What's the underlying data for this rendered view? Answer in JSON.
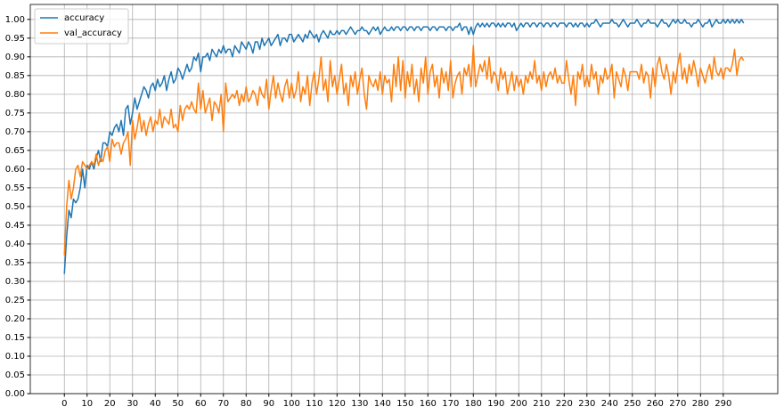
{
  "chart_data": {
    "type": "line",
    "x": [
      0,
      1,
      2,
      3,
      4,
      5,
      6,
      7,
      8,
      9,
      10,
      11,
      12,
      13,
      14,
      15,
      16,
      17,
      18,
      19,
      20,
      21,
      22,
      23,
      24,
      25,
      26,
      27,
      28,
      29,
      30,
      31,
      32,
      33,
      34,
      35,
      36,
      37,
      38,
      39,
      40,
      41,
      42,
      43,
      44,
      45,
      46,
      47,
      48,
      49,
      50,
      51,
      52,
      53,
      54,
      55,
      56,
      57,
      58,
      59,
      60,
      61,
      62,
      63,
      64,
      65,
      66,
      67,
      68,
      69,
      70,
      71,
      72,
      73,
      74,
      75,
      76,
      77,
      78,
      79,
      80,
      81,
      82,
      83,
      84,
      85,
      86,
      87,
      88,
      89,
      90,
      91,
      92,
      93,
      94,
      95,
      96,
      97,
      98,
      99,
      100,
      101,
      102,
      103,
      104,
      105,
      106,
      107,
      108,
      109,
      110,
      111,
      112,
      113,
      114,
      115,
      116,
      117,
      118,
      119,
      120,
      121,
      122,
      123,
      124,
      125,
      126,
      127,
      128,
      129,
      130,
      131,
      132,
      133,
      134,
      135,
      136,
      137,
      138,
      139,
      140,
      141,
      142,
      143,
      144,
      145,
      146,
      147,
      148,
      149,
      150,
      151,
      152,
      153,
      154,
      155,
      156,
      157,
      158,
      159,
      160,
      161,
      162,
      163,
      164,
      165,
      166,
      167,
      168,
      169,
      170,
      171,
      172,
      173,
      174,
      175,
      176,
      177,
      178,
      179,
      180,
      181,
      182,
      183,
      184,
      185,
      186,
      187,
      188,
      189,
      190,
      191,
      192,
      193,
      194,
      195,
      196,
      197,
      198,
      199,
      200,
      201,
      202,
      203,
      204,
      205,
      206,
      207,
      208,
      209,
      210,
      211,
      212,
      213,
      214,
      215,
      216,
      217,
      218,
      219,
      220,
      221,
      222,
      223,
      224,
      225,
      226,
      227,
      228,
      229,
      230,
      231,
      232,
      233,
      234,
      235,
      236,
      237,
      238,
      239,
      240,
      241,
      242,
      243,
      244,
      245,
      246,
      247,
      248,
      249,
      250,
      251,
      252,
      253,
      254,
      255,
      256,
      257,
      258,
      259,
      260,
      261,
      262,
      263,
      264,
      265,
      266,
      267,
      268,
      269,
      270,
      271,
      272,
      273,
      274,
      275,
      276,
      277,
      278,
      279,
      280,
      281,
      282,
      283,
      284,
      285,
      286,
      287,
      288,
      289,
      290,
      291,
      292,
      293,
      294,
      295,
      296,
      297,
      298,
      299
    ],
    "series": [
      {
        "name": "accuracy",
        "color": "#1f77b4",
        "values": [
          0.32,
          0.42,
          0.49,
          0.47,
          0.52,
          0.51,
          0.52,
          0.55,
          0.6,
          0.55,
          0.61,
          0.6,
          0.62,
          0.6,
          0.63,
          0.65,
          0.62,
          0.67,
          0.67,
          0.66,
          0.7,
          0.69,
          0.71,
          0.72,
          0.7,
          0.73,
          0.69,
          0.76,
          0.77,
          0.72,
          0.75,
          0.79,
          0.76,
          0.78,
          0.8,
          0.82,
          0.81,
          0.79,
          0.82,
          0.83,
          0.81,
          0.84,
          0.82,
          0.83,
          0.85,
          0.81,
          0.84,
          0.86,
          0.83,
          0.84,
          0.87,
          0.86,
          0.84,
          0.86,
          0.88,
          0.86,
          0.87,
          0.9,
          0.89,
          0.91,
          0.86,
          0.9,
          0.9,
          0.91,
          0.89,
          0.92,
          0.91,
          0.9,
          0.92,
          0.91,
          0.93,
          0.91,
          0.92,
          0.92,
          0.9,
          0.93,
          0.92,
          0.91,
          0.94,
          0.93,
          0.92,
          0.94,
          0.93,
          0.91,
          0.94,
          0.94,
          0.92,
          0.95,
          0.93,
          0.94,
          0.95,
          0.93,
          0.94,
          0.95,
          0.96,
          0.93,
          0.95,
          0.95,
          0.94,
          0.96,
          0.96,
          0.94,
          0.95,
          0.96,
          0.95,
          0.94,
          0.96,
          0.95,
          0.97,
          0.96,
          0.95,
          0.96,
          0.94,
          0.96,
          0.97,
          0.96,
          0.95,
          0.97,
          0.96,
          0.96,
          0.97,
          0.96,
          0.97,
          0.97,
          0.96,
          0.97,
          0.98,
          0.97,
          0.96,
          0.97,
          0.97,
          0.98,
          0.97,
          0.97,
          0.96,
          0.97,
          0.98,
          0.97,
          0.98,
          0.96,
          0.97,
          0.98,
          0.97,
          0.97,
          0.98,
          0.97,
          0.98,
          0.98,
          0.97,
          0.98,
          0.98,
          0.97,
          0.98,
          0.98,
          0.97,
          0.98,
          0.98,
          0.97,
          0.98,
          0.98,
          0.98,
          0.97,
          0.98,
          0.98,
          0.97,
          0.98,
          0.98,
          0.98,
          0.97,
          0.98,
          0.98,
          0.97,
          0.98,
          0.98,
          0.99,
          0.97,
          0.98,
          0.98,
          0.96,
          0.98,
          0.96,
          0.98,
          0.99,
          0.98,
          0.99,
          0.98,
          0.99,
          0.98,
          0.99,
          0.99,
          0.98,
          0.99,
          0.98,
          0.99,
          0.98,
          0.99,
          0.99,
          0.98,
          0.99,
          0.97,
          0.98,
          0.99,
          0.98,
          0.99,
          0.99,
          0.98,
          0.99,
          0.99,
          0.98,
          0.99,
          0.99,
          0.98,
          0.99,
          0.99,
          0.98,
          0.99,
          0.99,
          0.98,
          0.99,
          0.99,
          0.99,
          0.98,
          0.99,
          0.99,
          0.98,
          0.99,
          0.98,
          0.99,
          0.99,
          0.98,
          0.99,
          0.98,
          0.99,
          0.99,
          1.0,
          0.99,
          0.98,
          0.99,
          0.99,
          0.99,
          0.99,
          1.0,
          0.99,
          0.99,
          0.98,
          0.99,
          1.0,
          0.99,
          0.98,
          0.99,
          0.99,
          0.99,
          1.0,
          0.99,
          0.98,
          0.99,
          0.99,
          1.0,
          0.99,
          0.99,
          0.99,
          0.98,
          0.99,
          1.0,
          0.99,
          0.99,
          0.98,
          0.99,
          1.0,
          0.99,
          1.0,
          0.99,
          0.99,
          1.0,
          0.99,
          0.99,
          0.98,
          0.99,
          0.99,
          1.0,
          0.99,
          0.98,
          0.99,
          0.99,
          1.0,
          0.98,
          0.99,
          1.0,
          0.99,
          0.99,
          1.0,
          0.99,
          1.0,
          0.99,
          1.0,
          0.99,
          1.0,
          0.99,
          1.0,
          0.99
        ]
      },
      {
        "name": "val_accuracy",
        "color": "#ff7f0e",
        "values": [
          0.37,
          0.5,
          0.57,
          0.52,
          0.55,
          0.6,
          0.61,
          0.58,
          0.62,
          0.61,
          0.6,
          0.61,
          0.62,
          0.61,
          0.64,
          0.61,
          0.63,
          0.62,
          0.65,
          0.66,
          0.62,
          0.68,
          0.66,
          0.67,
          0.67,
          0.64,
          0.67,
          0.68,
          0.7,
          0.61,
          0.73,
          0.68,
          0.71,
          0.75,
          0.7,
          0.73,
          0.69,
          0.72,
          0.74,
          0.7,
          0.73,
          0.72,
          0.76,
          0.71,
          0.74,
          0.73,
          0.72,
          0.76,
          0.71,
          0.72,
          0.7,
          0.77,
          0.73,
          0.76,
          0.77,
          0.76,
          0.78,
          0.76,
          0.75,
          0.83,
          0.76,
          0.81,
          0.75,
          0.77,
          0.79,
          0.73,
          0.78,
          0.77,
          0.75,
          0.8,
          0.7,
          0.83,
          0.78,
          0.79,
          0.8,
          0.79,
          0.81,
          0.77,
          0.8,
          0.78,
          0.82,
          0.78,
          0.79,
          0.81,
          0.8,
          0.77,
          0.82,
          0.8,
          0.79,
          0.84,
          0.76,
          0.81,
          0.85,
          0.79,
          0.83,
          0.8,
          0.78,
          0.82,
          0.84,
          0.79,
          0.83,
          0.79,
          0.81,
          0.86,
          0.78,
          0.82,
          0.8,
          0.85,
          0.77,
          0.83,
          0.86,
          0.8,
          0.84,
          0.9,
          0.81,
          0.84,
          0.78,
          0.89,
          0.82,
          0.85,
          0.8,
          0.84,
          0.88,
          0.8,
          0.83,
          0.77,
          0.85,
          0.82,
          0.86,
          0.8,
          0.84,
          0.87,
          0.8,
          0.76,
          0.85,
          0.83,
          0.82,
          0.84,
          0.81,
          0.86,
          0.8,
          0.85,
          0.83,
          0.84,
          0.78,
          0.88,
          0.82,
          0.9,
          0.81,
          0.89,
          0.79,
          0.86,
          0.82,
          0.88,
          0.8,
          0.84,
          0.78,
          0.87,
          0.83,
          0.9,
          0.8,
          0.86,
          0.88,
          0.82,
          0.85,
          0.79,
          0.87,
          0.83,
          0.86,
          0.81,
          0.89,
          0.79,
          0.83,
          0.85,
          0.86,
          0.8,
          0.87,
          0.85,
          0.88,
          0.82,
          0.93,
          0.82,
          0.85,
          0.88,
          0.86,
          0.89,
          0.84,
          0.9,
          0.83,
          0.86,
          0.85,
          0.81,
          0.87,
          0.84,
          0.86,
          0.8,
          0.83,
          0.86,
          0.81,
          0.85,
          0.82,
          0.84,
          0.8,
          0.85,
          0.83,
          0.86,
          0.84,
          0.89,
          0.83,
          0.85,
          0.81,
          0.86,
          0.82,
          0.85,
          0.86,
          0.84,
          0.87,
          0.83,
          0.85,
          0.83,
          0.83,
          0.89,
          0.84,
          0.8,
          0.85,
          0.77,
          0.86,
          0.84,
          0.88,
          0.82,
          0.85,
          0.82,
          0.88,
          0.84,
          0.86,
          0.8,
          0.85,
          0.83,
          0.87,
          0.84,
          0.85,
          0.88,
          0.79,
          0.86,
          0.84,
          0.82,
          0.87,
          0.85,
          0.81,
          0.86,
          0.86,
          0.86,
          0.86,
          0.84,
          0.88,
          0.83,
          0.86,
          0.85,
          0.79,
          0.87,
          0.82,
          0.88,
          0.9,
          0.86,
          0.84,
          0.88,
          0.85,
          0.8,
          0.86,
          0.83,
          0.88,
          0.91,
          0.84,
          0.87,
          0.83,
          0.88,
          0.85,
          0.89,
          0.86,
          0.82,
          0.87,
          0.85,
          0.83,
          0.86,
          0.88,
          0.84,
          0.9,
          0.86,
          0.85,
          0.87,
          0.84,
          0.87,
          0.87,
          0.86,
          0.88,
          0.92,
          0.85,
          0.89,
          0.9,
          0.89
        ]
      }
    ],
    "xlim": [
      -15,
      314
    ],
    "ylim": [
      0,
      1.04
    ],
    "xticks": [
      0,
      10,
      20,
      30,
      40,
      50,
      60,
      70,
      80,
      90,
      100,
      110,
      120,
      130,
      140,
      150,
      160,
      170,
      180,
      190,
      200,
      210,
      220,
      230,
      240,
      250,
      260,
      270,
      280,
      290
    ],
    "yticks": [
      {
        "value": 0,
        "label": "0.00"
      },
      {
        "value": 0.05,
        "label": "0.05"
      },
      {
        "value": 0.1,
        "label": "0.10"
      },
      {
        "value": 0.15,
        "label": "0.15"
      },
      {
        "value": 0.2,
        "label": "0.20"
      },
      {
        "value": 0.25,
        "label": "0.25"
      },
      {
        "value": 0.3,
        "label": "0.30"
      },
      {
        "value": 0.35,
        "label": "0.35"
      },
      {
        "value": 0.4,
        "label": "0.40"
      },
      {
        "value": 0.45,
        "label": "0.45"
      },
      {
        "value": 0.5,
        "label": "0.50"
      },
      {
        "value": 0.55,
        "label": "0.55"
      },
      {
        "value": 0.6,
        "label": "0.60"
      },
      {
        "value": 0.65,
        "label": "0.65"
      },
      {
        "value": 0.7,
        "label": "0.70"
      },
      {
        "value": 0.75,
        "label": "0.75"
      },
      {
        "value": 0.8,
        "label": "0.80"
      },
      {
        "value": 0.85,
        "label": "0.85"
      },
      {
        "value": 0.9,
        "label": "0.90"
      },
      {
        "value": 0.95,
        "label": "0.95"
      },
      {
        "value": 1,
        "label": "1.00"
      }
    ],
    "grid": true,
    "legend": "upper-left"
  }
}
